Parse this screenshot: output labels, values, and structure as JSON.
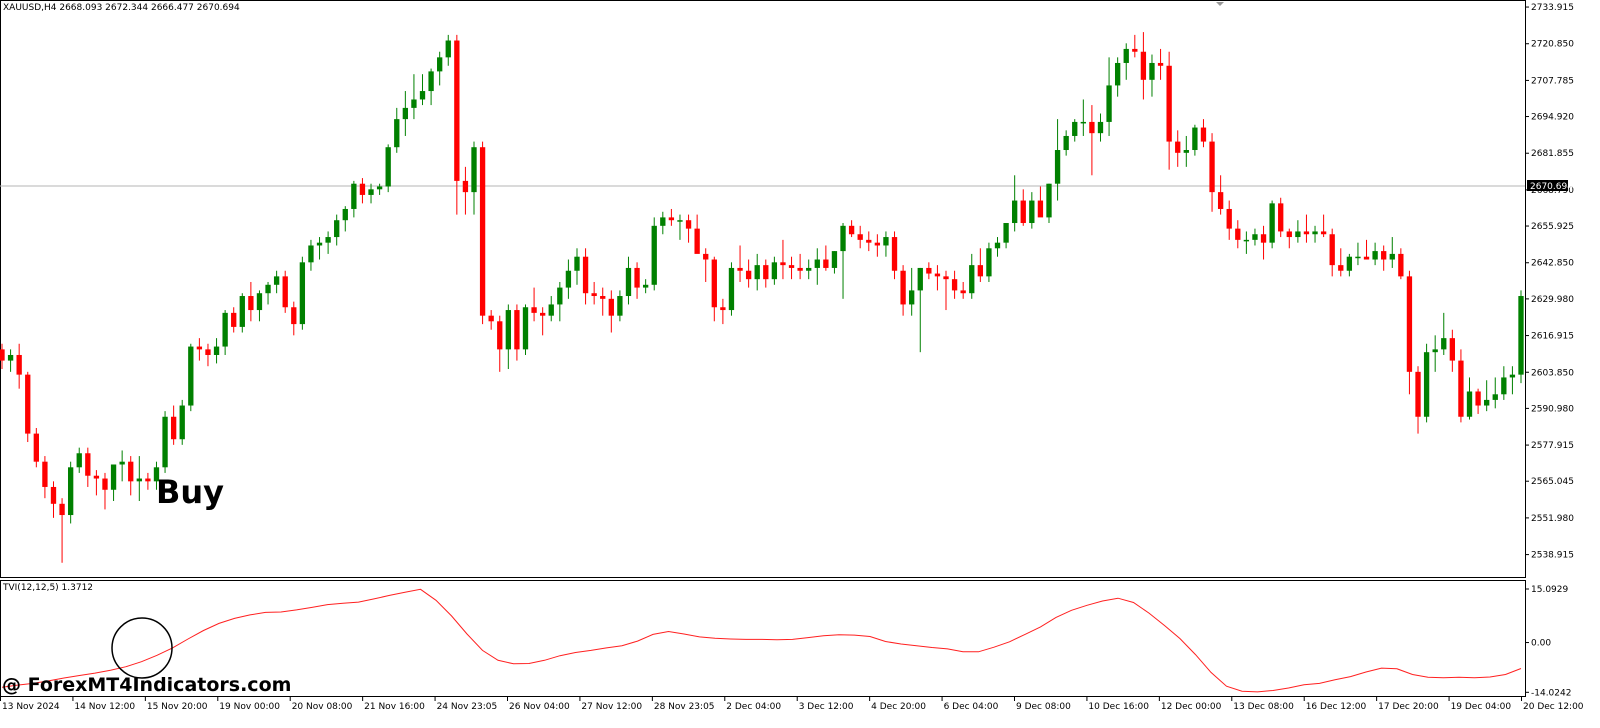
{
  "chart_data": [
    {
      "type": "candlestick",
      "symbol": "XAUUSD,H4",
      "ohlc_label": [
        "2668.093",
        "2672.344",
        "2666.477",
        "2670.694"
      ],
      "current_price": "2670.694",
      "ylim": [
        2532.0,
        2735.0
      ],
      "y_ticks": [
        "2733.915",
        "2720.850",
        "2707.785",
        "2694.920",
        "2681.855",
        "2668.790",
        "2655.925",
        "2642.850",
        "2629.980",
        "2616.915",
        "2603.850",
        "2590.980",
        "2577.915",
        "2565.045",
        "2551.980",
        "2538.915"
      ],
      "x_ticks": [
        "13 Nov 2024",
        "14 Nov 12:00",
        "15 Nov 20:00",
        "19 Nov 00:00",
        "20 Nov 08:00",
        "21 Nov 16:00",
        "24 Nov 23:05",
        "26 Nov 04:00",
        "27 Nov 12:00",
        "28 Nov 23:05",
        "2 Dec 04:00",
        "3 Dec 12:00",
        "4 Dec 20:00",
        "6 Dec 04:00",
        "9 Dec 08:00",
        "10 Dec 16:00",
        "12 Dec 00:00",
        "13 Dec 08:00",
        "16 Dec 12:00",
        "17 Dec 20:00",
        "19 Dec 04:00",
        "20 Dec 12:00"
      ],
      "up_color": "#008000",
      "down_color": "#ff0000",
      "candles": [
        [
          2612.0,
          2614.0,
          2605.0,
          2608.0
        ],
        [
          2608.0,
          2612.0,
          2604.0,
          2610.0
        ],
        [
          2610.0,
          2614.0,
          2598.0,
          2603.0
        ],
        [
          2603.0,
          2604.0,
          2579.0,
          2582.0
        ],
        [
          2582.0,
          2584.0,
          2570.0,
          2572.0
        ],
        [
          2572.0,
          2574.0,
          2559.0,
          2563.0
        ],
        [
          2563.0,
          2565.0,
          2552.0,
          2557.0
        ],
        [
          2557.0,
          2559.0,
          2536.0,
          2553.0
        ],
        [
          2553.0,
          2572.0,
          2550.0,
          2570.0
        ],
        [
          2570.0,
          2577.0,
          2568.0,
          2575.0
        ],
        [
          2575.0,
          2577.0,
          2563.0,
          2567.0
        ],
        [
          2567.0,
          2569.0,
          2560.0,
          2566.0
        ],
        [
          2566.0,
          2568.0,
          2555.0,
          2562.0
        ],
        [
          2562.0,
          2570.0,
          2558.0,
          2571.0
        ],
        [
          2571.0,
          2576.0,
          2565.0,
          2572.0
        ],
        [
          2572.0,
          2574.0,
          2560.0,
          2565.0
        ],
        [
          2565.0,
          2574.0,
          2558.0,
          2566.0
        ],
        [
          2566.0,
          2568.0,
          2562.0,
          2565.0
        ],
        [
          2565.0,
          2572.0,
          2562.0,
          2570.0
        ],
        [
          2570.0,
          2590.0,
          2568.0,
          2588.0
        ],
        [
          2588.0,
          2592.0,
          2578.0,
          2580.0
        ],
        [
          2580.0,
          2594.0,
          2578.0,
          2592.0
        ],
        [
          2592.0,
          2614.0,
          2590.0,
          2613.0
        ],
        [
          2613.0,
          2616.0,
          2608.0,
          2612.0
        ],
        [
          2612.0,
          2614.0,
          2606.0,
          2610.0
        ],
        [
          2610.0,
          2616.0,
          2607.0,
          2613.0
        ],
        [
          2613.0,
          2626.0,
          2610.0,
          2625.0
        ],
        [
          2625.0,
          2627.0,
          2618.0,
          2620.0
        ],
        [
          2620.0,
          2632.0,
          2618.0,
          2631.0
        ],
        [
          2631.0,
          2636.0,
          2622.0,
          2626.0
        ],
        [
          2626.0,
          2633.0,
          2622.0,
          2632.0
        ],
        [
          2632.0,
          2636.0,
          2628.0,
          2635.0
        ],
        [
          2635.0,
          2640.0,
          2632.0,
          2638.0
        ],
        [
          2638.0,
          2640.0,
          2625.0,
          2627.0
        ],
        [
          2627.0,
          2629.0,
          2617.0,
          2621.0
        ],
        [
          2621.0,
          2645.0,
          2619.0,
          2643.0
        ],
        [
          2643.0,
          2651.0,
          2640.0,
          2649.0
        ],
        [
          2649.0,
          2652.0,
          2644.0,
          2650.0
        ],
        [
          2650.0,
          2654.0,
          2646.0,
          2652.0
        ],
        [
          2652.0,
          2660.0,
          2649.0,
          2658.0
        ],
        [
          2658.0,
          2663.0,
          2654.0,
          2662.0
        ],
        [
          2662.0,
          2672.0,
          2659.0,
          2671.0
        ],
        [
          2671.0,
          2673.0,
          2664.0,
          2667.0
        ],
        [
          2667.0,
          2671.0,
          2664.0,
          2669.0
        ],
        [
          2669.0,
          2671.0,
          2667.0,
          2670.0
        ],
        [
          2670.0,
          2685.0,
          2668.0,
          2684.0
        ],
        [
          2684.0,
          2698.0,
          2682.0,
          2694.0
        ],
        [
          2694.0,
          2704.0,
          2688.0,
          2698.0
        ],
        [
          2698.0,
          2710.0,
          2694.0,
          2701.0
        ],
        [
          2701.0,
          2710.0,
          2699.0,
          2704.0
        ],
        [
          2704.0,
          2712.0,
          2699.0,
          2711.0
        ],
        [
          2711.0,
          2718.0,
          2706.0,
          2716.0
        ],
        [
          2716.0,
          2724.0,
          2713.0,
          2722.0
        ],
        [
          2722.0,
          2724.0,
          2660.0,
          2672.0
        ],
        [
          2672.0,
          2677.0,
          2660.0,
          2668.0
        ],
        [
          2668.0,
          2686.0,
          2660.0,
          2684.0
        ],
        [
          2684.0,
          2686.0,
          2621.0,
          2624.0
        ],
        [
          2624.0,
          2626.0,
          2619.0,
          2622.0
        ],
        [
          2622.0,
          2624.0,
          2604.0,
          2612.0
        ],
        [
          2612.0,
          2628.0,
          2605.0,
          2626.0
        ],
        [
          2626.0,
          2628.0,
          2608.0,
          2612.0
        ],
        [
          2612.0,
          2628.0,
          2610.0,
          2627.0
        ],
        [
          2627.0,
          2634.0,
          2622.0,
          2625.0
        ],
        [
          2625.0,
          2627.0,
          2617.0,
          2624.0
        ],
        [
          2624.0,
          2631.0,
          2622.0,
          2628.0
        ],
        [
          2628.0,
          2636.0,
          2622.0,
          2634.0
        ],
        [
          2634.0,
          2644.0,
          2630.0,
          2640.0
        ],
        [
          2640.0,
          2648.0,
          2635.0,
          2645.0
        ],
        [
          2645.0,
          2648.0,
          2628.0,
          2632.0
        ],
        [
          2632.0,
          2636.0,
          2628.0,
          2631.0
        ],
        [
          2631.0,
          2634.0,
          2624.0,
          2630.0
        ],
        [
          2630.0,
          2633.0,
          2618.0,
          2624.0
        ],
        [
          2624.0,
          2633.0,
          2622.0,
          2631.0
        ],
        [
          2631.0,
          2645.0,
          2628.0,
          2641.0
        ],
        [
          2641.0,
          2643.0,
          2630.0,
          2634.0
        ],
        [
          2634.0,
          2637.0,
          2632.0,
          2635.0
        ],
        [
          2635.0,
          2659.0,
          2633.0,
          2656.0
        ],
        [
          2656.0,
          2661.0,
          2653.0,
          2659.0
        ],
        [
          2659.0,
          2662.0,
          2656.0,
          2658.0
        ],
        [
          2658.0,
          2660.0,
          2651.0,
          2658.0
        ],
        [
          2658.0,
          2660.0,
          2650.0,
          2655.0
        ],
        [
          2655.0,
          2660.0,
          2648.0,
          2646.0
        ],
        [
          2646.0,
          2648.0,
          2636.0,
          2644.0
        ],
        [
          2644.0,
          2645.0,
          2622.0,
          2627.0
        ],
        [
          2627.0,
          2630.0,
          2621.0,
          2626.0
        ],
        [
          2626.0,
          2643.0,
          2624.0,
          2641.0
        ],
        [
          2641.0,
          2649.0,
          2636.0,
          2640.0
        ],
        [
          2640.0,
          2644.0,
          2634.0,
          2637.0
        ],
        [
          2637.0,
          2646.0,
          2633.0,
          2642.0
        ],
        [
          2642.0,
          2644.0,
          2634.0,
          2637.0
        ],
        [
          2637.0,
          2645.0,
          2635.0,
          2643.0
        ],
        [
          2643.0,
          2651.0,
          2637.0,
          2642.0
        ],
        [
          2642.0,
          2645.0,
          2637.0,
          2641.0
        ],
        [
          2641.0,
          2646.0,
          2637.0,
          2640.0
        ],
        [
          2640.0,
          2644.0,
          2637.0,
          2641.0
        ],
        [
          2641.0,
          2648.0,
          2635.0,
          2644.0
        ],
        [
          2644.0,
          2649.0,
          2640.0,
          2641.0
        ],
        [
          2641.0,
          2647.0,
          2639.0,
          2647.0
        ],
        [
          2647.0,
          2657.0,
          2630.0,
          2656.0
        ],
        [
          2656.0,
          2658.0,
          2652.0,
          2653.0
        ],
        [
          2653.0,
          2656.0,
          2648.0,
          2651.0
        ],
        [
          2651.0,
          2654.0,
          2647.0,
          2650.0
        ],
        [
          2650.0,
          2653.0,
          2645.0,
          2649.0
        ],
        [
          2649.0,
          2654.0,
          2645.0,
          2652.0
        ],
        [
          2652.0,
          2654.0,
          2637.0,
          2640.0
        ],
        [
          2640.0,
          2642.0,
          2624.0,
          2628.0
        ],
        [
          2628.0,
          2641.0,
          2624.0,
          2633.0
        ],
        [
          2633.0,
          2641.0,
          2611.0,
          2641.0
        ],
        [
          2641.0,
          2643.0,
          2637.0,
          2639.0
        ],
        [
          2639.0,
          2642.0,
          2633.0,
          2638.0
        ],
        [
          2638.0,
          2640.0,
          2626.0,
          2637.0
        ],
        [
          2637.0,
          2640.0,
          2630.0,
          2633.0
        ],
        [
          2633.0,
          2636.0,
          2630.0,
          2632.0
        ],
        [
          2632.0,
          2646.0,
          2630.0,
          2642.0
        ],
        [
          2642.0,
          2648.0,
          2636.0,
          2638.0
        ],
        [
          2638.0,
          2650.0,
          2636.0,
          2648.0
        ],
        [
          2648.0,
          2652.0,
          2645.0,
          2650.0
        ],
        [
          2650.0,
          2657.0,
          2648.0,
          2657.0
        ],
        [
          2657.0,
          2674.0,
          2654.0,
          2665.0
        ],
        [
          2665.0,
          2669.0,
          2656.0,
          2657.0
        ],
        [
          2657.0,
          2668.0,
          2655.0,
          2665.0
        ],
        [
          2665.0,
          2670.0,
          2660.0,
          2659.0
        ],
        [
          2659.0,
          2671.0,
          2657.0,
          2671.0
        ],
        [
          2671.0,
          2694.0,
          2665.0,
          2683.0
        ],
        [
          2683.0,
          2690.0,
          2681.0,
          2688.0
        ],
        [
          2688.0,
          2694.0,
          2686.0,
          2693.0
        ],
        [
          2693.0,
          2701.0,
          2688.0,
          2693.0
        ],
        [
          2693.0,
          2699.0,
          2674.0,
          2689.0
        ],
        [
          2689.0,
          2696.0,
          2686.0,
          2693.0
        ],
        [
          2693.0,
          2716.0,
          2688.0,
          2706.0
        ],
        [
          2706.0,
          2716.0,
          2702.0,
          2714.0
        ],
        [
          2714.0,
          2721.0,
          2708.0,
          2719.0
        ],
        [
          2719.0,
          2724.0,
          2716.0,
          2718.0
        ],
        [
          2718.0,
          2725.0,
          2701.0,
          2708.0
        ],
        [
          2708.0,
          2717.0,
          2702.0,
          2714.0
        ],
        [
          2714.0,
          2719.0,
          2708.0,
          2713.0
        ],
        [
          2713.0,
          2718.0,
          2676.0,
          2686.0
        ],
        [
          2686.0,
          2690.0,
          2677.0,
          2682.0
        ],
        [
          2682.0,
          2688.0,
          2677.0,
          2683.0
        ],
        [
          2683.0,
          2692.0,
          2681.0,
          2691.0
        ],
        [
          2691.0,
          2694.0,
          2684.0,
          2686.0
        ],
        [
          2686.0,
          2689.0,
          2661.0,
          2668.0
        ],
        [
          2668.0,
          2674.0,
          2660.0,
          2662.0
        ],
        [
          2662.0,
          2665.0,
          2651.0,
          2655.0
        ],
        [
          2655.0,
          2658.0,
          2648.0,
          2651.0
        ],
        [
          2651.0,
          2654.0,
          2646.0,
          2651.0
        ],
        [
          2651.0,
          2655.0,
          2649.0,
          2653.0
        ],
        [
          2653.0,
          2656.0,
          2644.0,
          2650.0
        ],
        [
          2650.0,
          2665.0,
          2648.0,
          2664.0
        ],
        [
          2664.0,
          2666.0,
          2652.0,
          2654.0
        ],
        [
          2654.0,
          2655.0,
          2648.0,
          2652.0
        ],
        [
          2652.0,
          2658.0,
          2650.0,
          2654.0
        ],
        [
          2654.0,
          2660.0,
          2650.0,
          2653.0
        ],
        [
          2653.0,
          2656.0,
          2650.0,
          2654.0
        ],
        [
          2654.0,
          2660.0,
          2652.0,
          2653.0
        ],
        [
          2653.0,
          2655.0,
          2638.0,
          2642.0
        ],
        [
          2642.0,
          2648.0,
          2638.0,
          2640.0
        ],
        [
          2640.0,
          2646.0,
          2638.0,
          2645.0
        ],
        [
          2645.0,
          2650.0,
          2642.0,
          2645.0
        ],
        [
          2645.0,
          2651.0,
          2644.0,
          2644.0
        ],
        [
          2644.0,
          2650.0,
          2642.0,
          2647.0
        ],
        [
          2647.0,
          2649.0,
          2640.0,
          2644.0
        ],
        [
          2644.0,
          2652.0,
          2641.0,
          2646.0
        ],
        [
          2646.0,
          2648.0,
          2637.0,
          2638.0
        ],
        [
          2638.0,
          2640.0,
          2596.0,
          2604.0
        ],
        [
          2604.0,
          2606.0,
          2582.0,
          2588.0
        ],
        [
          2588.0,
          2614.0,
          2586.0,
          2611.0
        ],
        [
          2611.0,
          2617.0,
          2604.0,
          2612.0
        ],
        [
          2612.0,
          2625.0,
          2610.0,
          2616.0
        ],
        [
          2616.0,
          2619.0,
          2604.0,
          2608.0
        ],
        [
          2608.0,
          2612.0,
          2586.0,
          2588.0
        ],
        [
          2588.0,
          2602.0,
          2587.0,
          2597.0
        ],
        [
          2597.0,
          2598.0,
          2589.0,
          2592.0
        ],
        [
          2592.0,
          2601.0,
          2590.0,
          2594.0
        ],
        [
          2594.0,
          2602.0,
          2591.0,
          2596.0
        ],
        [
          2596.0,
          2606.0,
          2594.0,
          2602.0
        ],
        [
          2602.0,
          2606.0,
          2596.0,
          2603.0
        ],
        [
          2603.0,
          2633.0,
          2600.0,
          2631.0
        ]
      ],
      "annotation": "Buy"
    },
    {
      "type": "line",
      "label": "TVI(12,12,5) 1.3712",
      "ylim": [
        -14.5,
        16.5
      ],
      "y_ticks": [
        "15.0929",
        "0.00",
        "-14.0242"
      ],
      "color": "#ff2020",
      "values": [
        -12.6,
        -12.0,
        -11.5,
        -10.8,
        -10.0,
        -9.3,
        -8.6,
        -7.8,
        -6.8,
        -5.4,
        -3.6,
        -1.5,
        1.0,
        3.4,
        5.4,
        6.8,
        7.8,
        8.5,
        8.6,
        9.2,
        9.9,
        10.7,
        11.1,
        11.4,
        12.3,
        13.3,
        14.2,
        15.0,
        11.9,
        7.5,
        2.4,
        -2.2,
        -5.0,
        -6.0,
        -5.9,
        -5.0,
        -3.7,
        -2.8,
        -2.2,
        -1.5,
        -0.9,
        0.4,
        2.3,
        3.1,
        2.4,
        1.6,
        1.2,
        1.0,
        0.9,
        0.9,
        0.8,
        0.9,
        1.4,
        1.9,
        2.2,
        2.1,
        1.7,
        0.3,
        -0.4,
        -0.9,
        -1.4,
        -1.8,
        -2.6,
        -2.6,
        -1.3,
        0.2,
        2.3,
        4.4,
        7.1,
        9.1,
        10.5,
        11.7,
        12.5,
        11.3,
        8.3,
        4.8,
        1.1,
        -3.4,
        -8.4,
        -12.3,
        -13.7,
        -13.9,
        -13.5,
        -12.8,
        -11.9,
        -11.5,
        -10.5,
        -9.6,
        -8.3,
        -7.2,
        -7.4,
        -9.0,
        -9.8,
        -9.9,
        -9.8,
        -9.9,
        -9.7,
        -9.0,
        -7.3
      ]
    }
  ],
  "watermark": "@ ForexMT4Indicators.com"
}
